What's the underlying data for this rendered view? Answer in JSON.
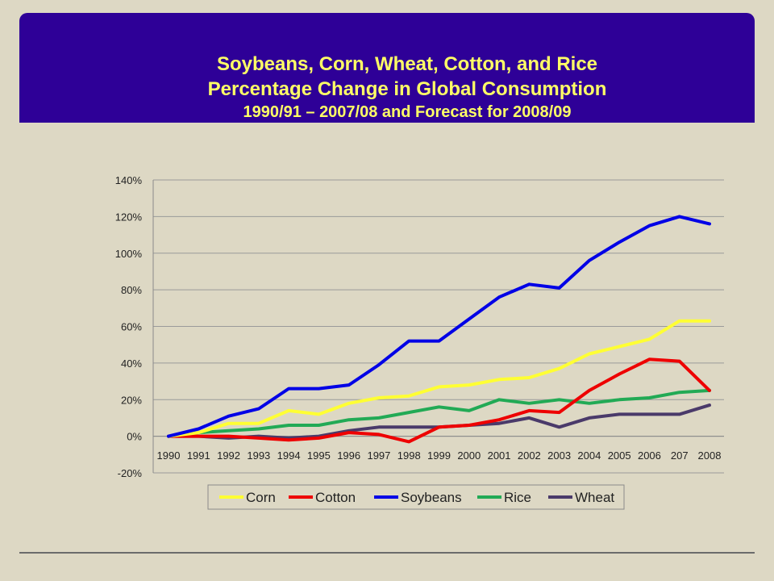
{
  "title": {
    "line1": "Soybeans, Corn, Wheat, Cotton, and Rice",
    "line2": "Percentage Change in Global Consumption",
    "line3": "1990/91 – 2007/08 and Forecast for 2008/09"
  },
  "chart_data": {
    "type": "line",
    "categories": [
      "1990",
      "1991",
      "1992",
      "1993",
      "1994",
      "1995",
      "1996",
      "1997",
      "1998",
      "1999",
      "2000",
      "2001",
      "2002",
      "2003",
      "2004",
      "2005",
      "2006",
      "207",
      "2008"
    ],
    "y_ticks": [
      -20,
      0,
      20,
      40,
      60,
      80,
      100,
      120,
      140
    ],
    "y_tick_suffix": "%",
    "ylim": [
      -20,
      140
    ],
    "grid": true,
    "legend_position": "bottom",
    "series": [
      {
        "name": "Corn",
        "color": "#ffff33",
        "values": [
          0,
          2,
          7,
          7,
          14,
          12,
          18,
          21,
          22,
          27,
          28,
          31,
          32,
          37,
          45,
          49,
          53,
          63,
          63
        ]
      },
      {
        "name": "Cotton",
        "color": "#ee0000",
        "values": [
          0,
          0,
          0,
          -1,
          -2,
          -1,
          2,
          1,
          -3,
          5,
          6,
          9,
          14,
          13,
          25,
          34,
          42,
          41,
          25
        ]
      },
      {
        "name": "Soybeans",
        "color": "#0000e6",
        "values": [
          0,
          4,
          11,
          15,
          26,
          26,
          28,
          39,
          52,
          52,
          64,
          76,
          83,
          81,
          96,
          106,
          115,
          120,
          116
        ]
      },
      {
        "name": "Rice",
        "color": "#22aa55",
        "values": [
          0,
          2,
          3,
          4,
          6,
          6,
          9,
          10,
          13,
          16,
          14,
          20,
          18,
          20,
          18,
          20,
          21,
          24,
          25
        ]
      },
      {
        "name": "Wheat",
        "color": "#4a3a6a",
        "values": [
          0,
          0,
          -1,
          0,
          -1,
          0,
          3,
          5,
          5,
          5,
          6,
          7,
          10,
          5,
          10,
          12,
          12,
          12,
          17
        ]
      }
    ]
  }
}
